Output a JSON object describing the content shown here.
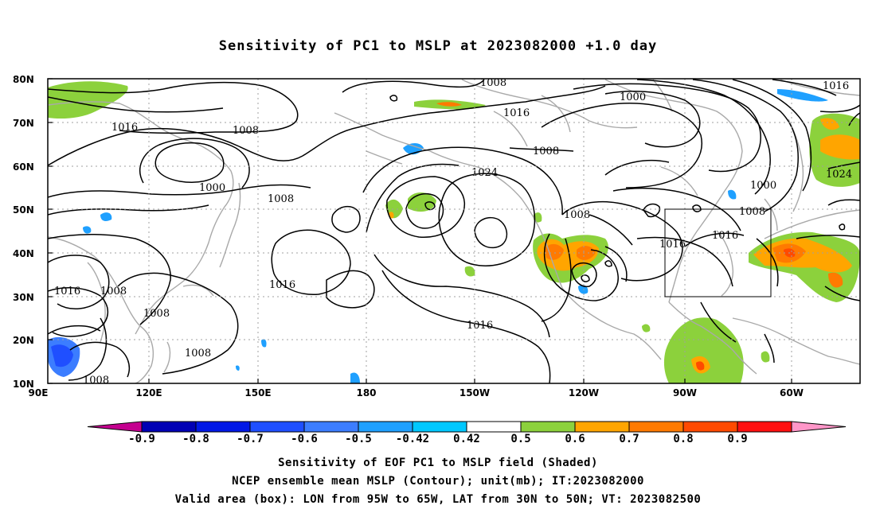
{
  "title": "Sensitivity of PC1 to MSLP at 2023082000 +1.0 day",
  "map": {
    "lon_labels": [
      "90E",
      "120E",
      "150E",
      "180",
      "150W",
      "120W",
      "90W",
      "60W"
    ],
    "lat_labels": [
      "80N",
      "70N",
      "60N",
      "50N",
      "40N",
      "30N",
      "20N",
      "10N"
    ],
    "contour_labels": [
      "1008",
      "1016",
      "1000",
      "1016",
      "1016",
      "1008",
      "1008",
      "1000",
      "1008",
      "1016",
      "1008",
      "1016",
      "1008",
      "1016",
      "1008",
      "1008",
      "1024",
      "1016",
      "1008",
      "1016",
      "1016",
      "1000",
      "1008",
      "1016",
      "1024"
    ],
    "valid_box": {
      "lon_from": "95W",
      "lon_to": "65W",
      "lat_from": "30N",
      "lat_to": "50N"
    }
  },
  "colorbar": {
    "labels": [
      "-0.9",
      "-0.8",
      "-0.7",
      "-0.6",
      "-0.5",
      "-0.42",
      "0.42",
      "0.5",
      "0.6",
      "0.7",
      "0.8",
      "0.9"
    ],
    "colors": [
      "#c4008f",
      "#0000b4",
      "#0018e6",
      "#1f4fff",
      "#3c7dff",
      "#1fa0ff",
      "#00c8ff",
      "#ffffff",
      "#8cd13c",
      "#ffa500",
      "#ff7a00",
      "#ff4a00",
      "#ff1010",
      "#ff96c8"
    ]
  },
  "footer": {
    "line1": "Sensitivity of EOF PC1 to MSLP field (Shaded)",
    "line2": "NCEP ensemble mean MSLP (Contour); unit(mb); IT:2023082000",
    "line3": "Valid area (box): LON from 95W to 65W, LAT from 30N to 50N; VT: 2023082500"
  }
}
